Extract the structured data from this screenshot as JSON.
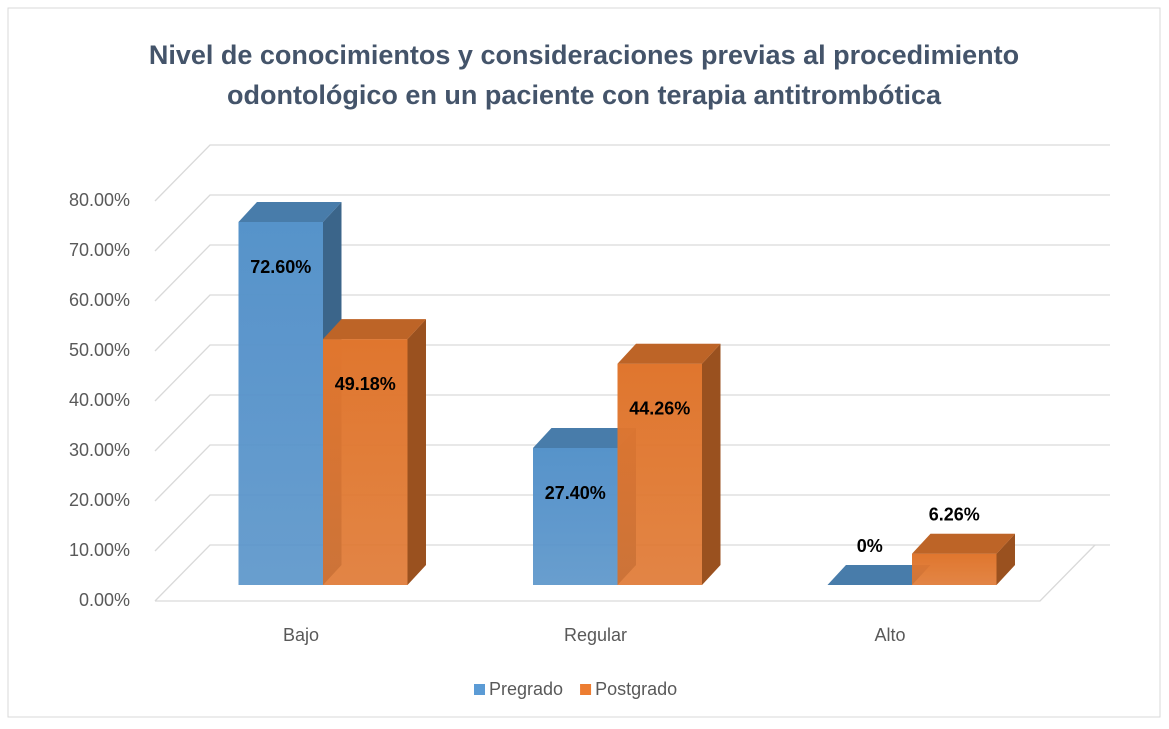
{
  "chart_data": {
    "type": "bar3d",
    "title": [
      "Nivel de conocimientos y consideraciones previas al procedimiento",
      "odontológico en un paciente con terapia antitrombótica"
    ],
    "categories": [
      "Bajo",
      "Regular",
      "Alto"
    ],
    "series": [
      {
        "name": "Pregrado",
        "color": "#5b9bd5",
        "values": [
          72.6,
          27.4,
          0
        ],
        "value_labels": [
          "72.60%",
          "27.40%",
          "0%"
        ]
      },
      {
        "name": "Postgrado",
        "color": "#ed7d31",
        "values": [
          49.18,
          44.26,
          6.26
        ],
        "value_labels": [
          "49.18%",
          "44.26%",
          "6.26%"
        ]
      }
    ],
    "ylim": [
      0,
      80
    ],
    "yticks": [
      {
        "value": 0,
        "label": "0.00%"
      },
      {
        "value": 10,
        "label": "10.00%"
      },
      {
        "value": 20,
        "label": "20.00%"
      },
      {
        "value": 30,
        "label": "30.00%"
      },
      {
        "value": 40,
        "label": "40.00%"
      },
      {
        "value": 50,
        "label": "50.00%"
      },
      {
        "value": 60,
        "label": "60.00%"
      },
      {
        "value": 70,
        "label": "70.00%"
      },
      {
        "value": 80,
        "label": "80.00%"
      }
    ],
    "grid": true,
    "legend": "bottom"
  }
}
